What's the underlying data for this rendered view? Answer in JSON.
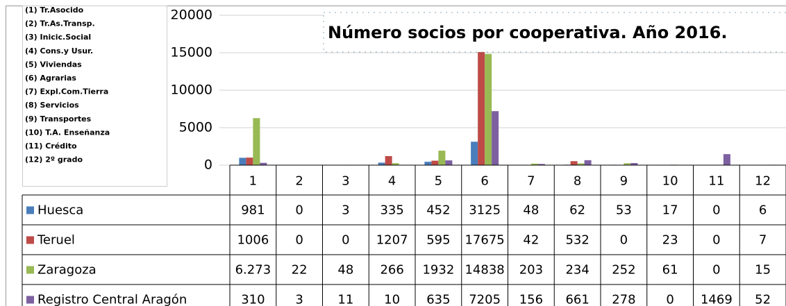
{
  "chart_data": {
    "type": "bar",
    "title": "Número socios por cooperativa. Año 2016.",
    "category_notes": [
      "(1) Tr.Asocido",
      "(2) Tr.As.Transp.",
      "(3) Inicic.Social",
      "(4) Cons.y Usur.",
      "(5) Viviendas",
      "(6) Agrarias",
      "(7) Expl.Com.Tierra",
      "(8) Servicios",
      "(9) Transportes",
      "(10) T.A. Enseñanza",
      "(11) Crédito",
      "(12) 2º grado"
    ],
    "categories": [
      "1",
      "2",
      "3",
      "4",
      "5",
      "6",
      "7",
      "8",
      "9",
      "10",
      "11",
      "12"
    ],
    "series": [
      {
        "name": "Huesca",
        "color": "#4a7ebb",
        "values": [
          981,
          0,
          3,
          335,
          452,
          3125,
          48,
          62,
          53,
          17,
          0,
          6
        ]
      },
      {
        "name": "Teruel",
        "color": "#be4b48",
        "values": [
          1006,
          0,
          0,
          1207,
          595,
          17675,
          42,
          532,
          0,
          23,
          0,
          7
        ]
      },
      {
        "name": "Zaragoza",
        "color": "#98b954",
        "values": [
          6273,
          22,
          48,
          266,
          1932,
          14838,
          203,
          234,
          252,
          61,
          0,
          15
        ],
        "value_labels": [
          "6.273",
          "22",
          "48",
          "266",
          "1932",
          "14838",
          "203",
          "234",
          "252",
          "61",
          "0",
          "15"
        ]
      },
      {
        "name": "Registro Central Aragón",
        "color": "#7d60a0",
        "values": [
          310,
          3,
          11,
          10,
          635,
          7205,
          156,
          661,
          278,
          0,
          1469,
          52
        ]
      }
    ],
    "ylim": [
      0,
      20000
    ],
    "yticks": [
      0,
      5000,
      10000,
      15000,
      20000
    ],
    "grid": true
  }
}
